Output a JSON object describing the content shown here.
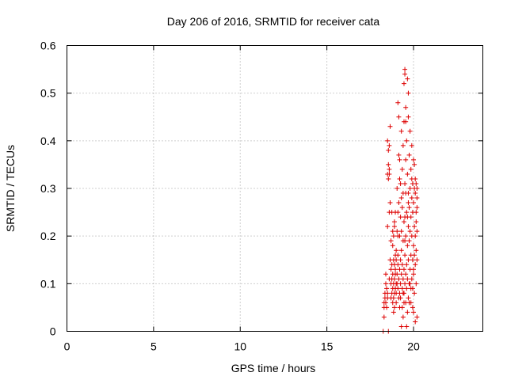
{
  "chart_data": {
    "type": "scatter",
    "title": "Day 206 of 2016, SRMTID for receiver cata",
    "xlabel": "GPS time / hours",
    "ylabel": "SRMTID / TECUs",
    "xlim": [
      0,
      24
    ],
    "ylim": [
      0,
      0.6
    ],
    "xticks": [
      "0",
      "5",
      "10",
      "15",
      "20"
    ],
    "yticks": [
      "0",
      "0.1",
      "0.2",
      "0.3",
      "0.4",
      "0.5",
      "0.6"
    ],
    "xtick_values": [
      0,
      5,
      10,
      15,
      20
    ],
    "ytick_values": [
      0,
      0.1,
      0.2,
      0.3,
      0.4,
      0.5,
      0.6
    ],
    "grid": true,
    "marker": "plus",
    "color": "#dd0000",
    "series": [
      {
        "name": "SRMTID",
        "points": [
          [
            18.25,
            0.0
          ],
          [
            18.3,
            0.03
          ],
          [
            18.3,
            0.05
          ],
          [
            18.3,
            0.06
          ],
          [
            18.35,
            0.07
          ],
          [
            18.35,
            0.08
          ],
          [
            18.4,
            0.06
          ],
          [
            18.4,
            0.1
          ],
          [
            18.4,
            0.12
          ],
          [
            18.45,
            0.05
          ],
          [
            18.45,
            0.09
          ],
          [
            18.5,
            0.07
          ],
          [
            18.5,
            0.08
          ],
          [
            18.5,
            0.22
          ],
          [
            18.5,
            0.33
          ],
          [
            18.5,
            0.4
          ],
          [
            18.55,
            0.32
          ],
          [
            18.55,
            0.35
          ],
          [
            18.55,
            0.38
          ],
          [
            18.6,
            0.25
          ],
          [
            18.6,
            0.33
          ],
          [
            18.6,
            0.34
          ],
          [
            18.6,
            0.39
          ],
          [
            18.65,
            0.43
          ],
          [
            18.65,
            0.27
          ],
          [
            18.7,
            0.07
          ],
          [
            18.7,
            0.1
          ],
          [
            18.7,
            0.13
          ],
          [
            18.75,
            0.08
          ],
          [
            18.75,
            0.11
          ],
          [
            18.75,
            0.14
          ],
          [
            18.75,
            0.25
          ],
          [
            18.8,
            0.06
          ],
          [
            18.8,
            0.09
          ],
          [
            18.8,
            0.12
          ],
          [
            18.8,
            0.18
          ],
          [
            18.85,
            0.07
          ],
          [
            18.85,
            0.1
          ],
          [
            18.85,
            0.15
          ],
          [
            18.85,
            0.2
          ],
          [
            18.9,
            0.08
          ],
          [
            18.9,
            0.11
          ],
          [
            18.9,
            0.14
          ],
          [
            18.9,
            0.22
          ],
          [
            18.9,
            0.23
          ],
          [
            18.95,
            0.09
          ],
          [
            18.95,
            0.12
          ],
          [
            18.95,
            0.13
          ],
          [
            18.95,
            0.25
          ],
          [
            19.0,
            0.1
          ],
          [
            19.0,
            0.08
          ],
          [
            19.0,
            0.17
          ],
          [
            19.0,
            0.15
          ],
          [
            19.05,
            0.12
          ],
          [
            19.05,
            0.1
          ],
          [
            19.05,
            0.3
          ],
          [
            19.1,
            0.09
          ],
          [
            19.1,
            0.14
          ],
          [
            19.1,
            0.16
          ],
          [
            19.1,
            0.25
          ],
          [
            19.1,
            0.48
          ],
          [
            19.15,
            0.07
          ],
          [
            19.15,
            0.11
          ],
          [
            19.15,
            0.37
          ],
          [
            19.15,
            0.45
          ],
          [
            19.2,
            0.08
          ],
          [
            19.2,
            0.13
          ],
          [
            19.2,
            0.2
          ],
          [
            19.2,
            0.32
          ],
          [
            19.2,
            0.36
          ],
          [
            19.25,
            0.1
          ],
          [
            19.25,
            0.15
          ],
          [
            19.25,
            0.24
          ],
          [
            19.25,
            0.31
          ],
          [
            19.3,
            0.12
          ],
          [
            19.3,
            0.17
          ],
          [
            19.3,
            0.28
          ],
          [
            19.3,
            0.42
          ],
          [
            19.3,
            0.01
          ],
          [
            19.35,
            0.09
          ],
          [
            19.35,
            0.14
          ],
          [
            19.35,
            0.26
          ],
          [
            19.35,
            0.34
          ],
          [
            19.4,
            0.08
          ],
          [
            19.4,
            0.11
          ],
          [
            19.4,
            0.19
          ],
          [
            19.4,
            0.29
          ],
          [
            19.4,
            0.39
          ],
          [
            19.45,
            0.06
          ],
          [
            19.45,
            0.13
          ],
          [
            19.45,
            0.23
          ],
          [
            19.45,
            0.44
          ],
          [
            19.45,
            0.52
          ],
          [
            19.5,
            0.54
          ],
          [
            19.5,
            0.55
          ],
          [
            19.5,
            0.1
          ],
          [
            19.5,
            0.16
          ],
          [
            19.5,
            0.24
          ],
          [
            19.5,
            0.31
          ],
          [
            19.55,
            0.12
          ],
          [
            19.55,
            0.2
          ],
          [
            19.55,
            0.29
          ],
          [
            19.55,
            0.36
          ],
          [
            19.55,
            0.47
          ],
          [
            19.6,
            0.09
          ],
          [
            19.6,
            0.14
          ],
          [
            19.6,
            0.25
          ],
          [
            19.6,
            0.01
          ],
          [
            19.65,
            0.11
          ],
          [
            19.65,
            0.18
          ],
          [
            19.65,
            0.24
          ],
          [
            19.65,
            0.33
          ],
          [
            19.65,
            0.53
          ],
          [
            19.7,
            0.07
          ],
          [
            19.7,
            0.15
          ],
          [
            19.7,
            0.22
          ],
          [
            19.7,
            0.29
          ],
          [
            19.7,
            0.45
          ],
          [
            19.7,
            0.5
          ],
          [
            19.75,
            0.1
          ],
          [
            19.75,
            0.19
          ],
          [
            19.75,
            0.26
          ],
          [
            19.75,
            0.37
          ],
          [
            19.8,
            0.13
          ],
          [
            19.8,
            0.21
          ],
          [
            19.8,
            0.3
          ],
          [
            19.8,
            0.42
          ],
          [
            19.85,
            0.06
          ],
          [
            19.85,
            0.16
          ],
          [
            19.85,
            0.24
          ],
          [
            19.85,
            0.34
          ],
          [
            19.9,
            0.11
          ],
          [
            19.9,
            0.2
          ],
          [
            19.9,
            0.28
          ],
          [
            19.9,
            0.39
          ],
          [
            19.95,
            0.09
          ],
          [
            19.95,
            0.15
          ],
          [
            19.95,
            0.25
          ],
          [
            19.95,
            0.31
          ],
          [
            20.0,
            0.04
          ],
          [
            20.0,
            0.12
          ],
          [
            20.0,
            0.18
          ],
          [
            20.0,
            0.27
          ],
          [
            20.0,
            0.36
          ],
          [
            20.05,
            0.08
          ],
          [
            20.05,
            0.16
          ],
          [
            20.05,
            0.22
          ],
          [
            20.05,
            0.3
          ],
          [
            20.1,
            0.02
          ],
          [
            20.1,
            0.14
          ],
          [
            20.1,
            0.2
          ],
          [
            20.1,
            0.29
          ],
          [
            20.1,
            0.32
          ],
          [
            20.15,
            0.1
          ],
          [
            20.15,
            0.17
          ],
          [
            20.15,
            0.25
          ],
          [
            20.15,
            0.31
          ],
          [
            20.2,
            0.03
          ],
          [
            20.2,
            0.15
          ],
          [
            20.2,
            0.21
          ],
          [
            20.2,
            0.28
          ],
          [
            20.2,
            0.3
          ],
          [
            18.55,
            0.0
          ],
          [
            18.6,
            0.11
          ],
          [
            18.65,
            0.15
          ],
          [
            18.7,
            0.19
          ],
          [
            18.8,
            0.21
          ],
          [
            18.9,
            0.05
          ],
          [
            19.0,
            0.06
          ],
          [
            19.05,
            0.21
          ],
          [
            19.15,
            0.27
          ],
          [
            19.25,
            0.07
          ],
          [
            19.35,
            0.05
          ],
          [
            19.45,
            0.08
          ],
          [
            19.55,
            0.06
          ],
          [
            19.65,
            0.04
          ],
          [
            19.75,
            0.06
          ],
          [
            19.85,
            0.09
          ],
          [
            19.95,
            0.05
          ],
          [
            20.05,
            0.35
          ],
          [
            19.6,
            0.4
          ],
          [
            19.9,
            0.32
          ],
          [
            20.15,
            0.23
          ],
          [
            19.4,
            0.03
          ],
          [
            19.2,
            0.05
          ],
          [
            18.95,
            0.16
          ],
          [
            19.8,
            0.1
          ],
          [
            20.0,
            0.13
          ],
          [
            19.5,
            0.19
          ],
          [
            19.3,
            0.21
          ],
          [
            19.7,
            0.27
          ],
          [
            20.2,
            0.26
          ],
          [
            19.1,
            0.2
          ],
          [
            18.85,
            0.04
          ],
          [
            19.55,
            0.44
          ]
        ]
      }
    ]
  }
}
